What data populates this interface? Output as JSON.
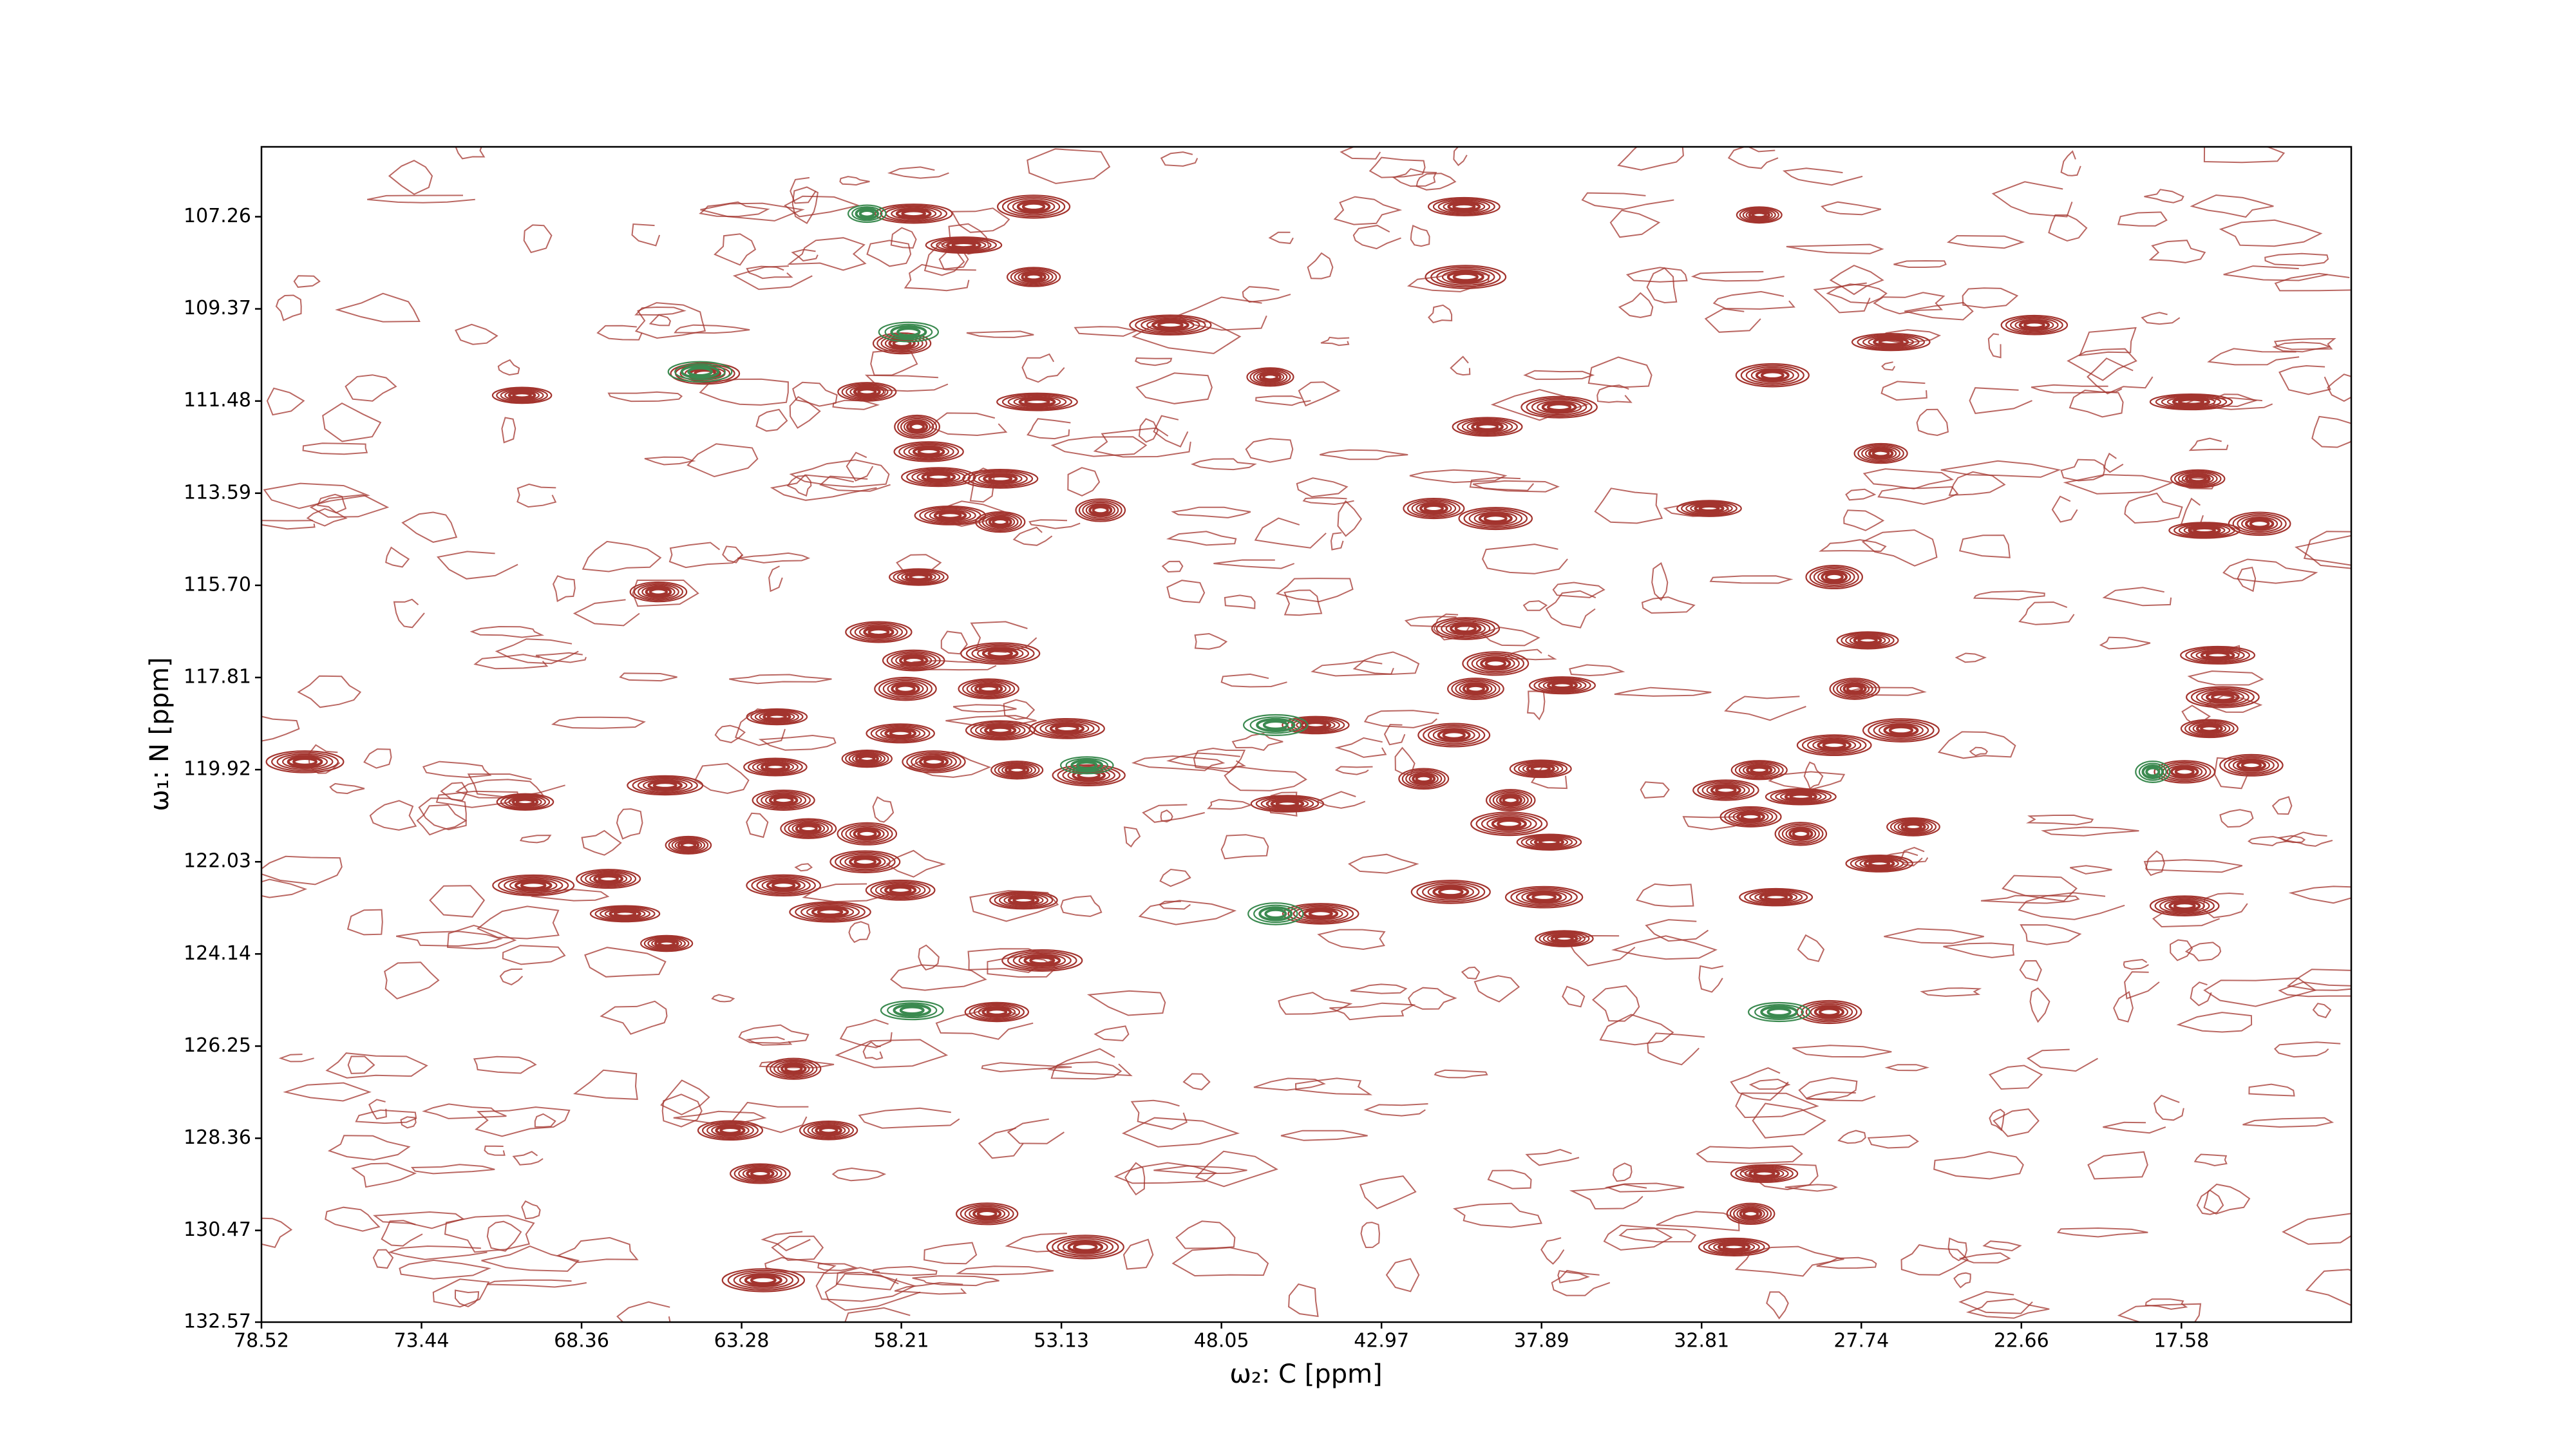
{
  "chart_data": {
    "type": "contour",
    "xlabel": "ω₂: C [ppm]",
    "ylabel": "ω₁: N [ppm]",
    "xlim": [
      78.52,
      12.19
    ],
    "ylim": [
      132.57,
      105.66
    ],
    "xticks": [
      78.52,
      73.44,
      68.36,
      63.28,
      58.21,
      53.13,
      48.05,
      42.97,
      37.89,
      32.81,
      27.74,
      22.66,
      17.58
    ],
    "yticks": [
      107.26,
      109.37,
      111.48,
      113.59,
      {
        "value": 115.7,
        "label": "115.70"
      },
      117.81,
      119.92,
      122.03,
      124.14,
      126.25,
      128.36,
      130.47,
      132.57
    ],
    "series": [
      {
        "color": "#a3342e",
        "x": [
          57.82,
          54.01,
          56.23,
          54.01,
          58.19,
          64.44,
          59.3,
          53.9,
          57.71,
          57.34,
          57.03,
          55.07,
          56.66,
          55.07,
          51.89,
          57.66,
          65.92,
          58.93,
          55.07,
          57.82,
          58.08,
          55.44,
          62.16,
          58.24,
          55.07,
          52.95,
          59.3,
          57.18,
          54.54,
          52.26,
          62.21,
          65.71,
          61.95,
          61.16,
          59.3,
          59.36,
          64.97,
          61.95,
          58.24,
          54.33,
          60.47,
          65.66,
          53.74,
          55.18,
          61.63,
          60.52,
          63.64,
          62.69,
          55.49,
          52.37,
          62.59,
          67.51,
          69.89,
          66.98,
          49.67,
          46.5,
          45.06,
          45.96,
          44.9,
          40.35,
          40.3,
          39.61,
          41.31,
          39.35,
          40.3,
          39.35,
          37.23,
          39.98,
          40.67,
          41.63,
          37.92,
          38.87,
          38.92,
          37.65,
          40.77,
          37.81,
          37.17,
          30.98,
          26.8,
          22.25,
          30.56,
          27.12,
          28.6,
          27.54,
          27.95,
          26.48,
          32.04,
          30.98,
          28.6,
          29.66,
          31.25,
          29.66,
          26.09,
          27.17,
          30.45,
          28.76,
          30.82,
          31.25,
          31.78,
          17.06,
          16.85,
          15.1,
          16.43,
          16.27,
          16.69,
          17.48,
          15.36,
          17.48,
          17.27,
          37.33,
          32.57,
          70.25,
          77.14,
          70.15
        ],
        "y": [
          107.19,
          107.03,
          107.91,
          108.64,
          110.16,
          110.85,
          111.27,
          111.5,
          112.07,
          112.64,
          113.22,
          113.26,
          114.1,
          114.25,
          113.98,
          115.51,
          115.85,
          116.77,
          117.26,
          117.42,
          118.07,
          118.07,
          118.71,
          119.09,
          119.02,
          118.98,
          119.67,
          119.74,
          119.93,
          120.05,
          119.86,
          120.28,
          120.62,
          121.27,
          121.39,
          122.03,
          121.65,
          122.57,
          122.68,
          122.91,
          123.18,
          123.9,
          124.29,
          125.47,
          126.77,
          128.18,
          128.18,
          129.17,
          130.09,
          130.85,
          131.61,
          122.42,
          122.57,
          123.22,
          109.74,
          110.93,
          118.9,
          120.7,
          123.22,
          107.03,
          108.64,
          112.07,
          113.94,
          114.17,
          116.69,
          117.49,
          117.99,
          118.07,
          119.13,
          120.13,
          119.9,
          120.62,
          121.16,
          121.58,
          122.72,
          122.84,
          123.79,
          107.22,
          110.13,
          109.74,
          110.89,
          112.68,
          115.51,
          116.96,
          118.07,
          119.02,
          120.39,
          119.93,
          119.36,
          120.54,
          121.0,
          121.39,
          121.23,
          122.07,
          122.84,
          125.47,
          129.17,
          130.09,
          130.85,
          113.26,
          114.44,
          114.29,
          117.3,
          118.26,
          118.98,
          119.97,
          119.82,
          123.04,
          111.5,
          111.62,
          113.94,
          111.35,
          119.74,
          120.66
        ]
      },
      {
        "color": "#3b8a50",
        "x": [
          57.87,
          46.33,
          46.33,
          30.35,
          18.49,
          59.3,
          57.98,
          64.6,
          52.32
        ],
        "y": [
          125.43,
          123.22,
          118.9,
          125.47,
          119.97,
          107.19,
          109.9,
          110.81,
          119.82
        ]
      }
    ]
  }
}
